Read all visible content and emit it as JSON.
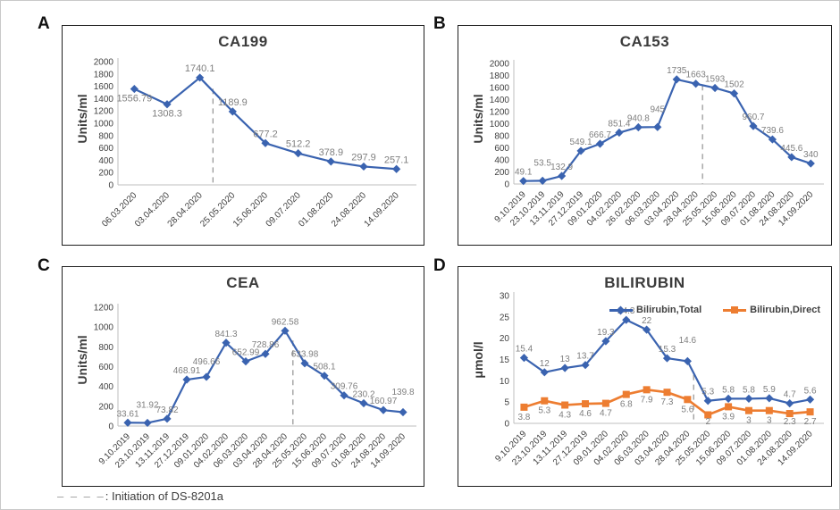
{
  "caption": {
    "key": "– – – –",
    "text": ": Initiation of DS-8201a"
  },
  "panels": [
    {
      "letter": "A"
    },
    {
      "letter": "B"
    },
    {
      "letter": "C"
    },
    {
      "letter": "D"
    }
  ],
  "colors": {
    "series_blue": "#3a63b0",
    "series_orange": "#ed7d31",
    "data_label": "#7f7f7f",
    "dashed_line": "#9a9a9a",
    "axis_line": "#bfbfbf",
    "tick_text": "#404040"
  },
  "chart_data": [
    {
      "type": "line",
      "title": "CA199",
      "ylabel": "Units/ml",
      "ylim": [
        0,
        2000
      ],
      "ytick_step": 200,
      "grid": false,
      "legend": false,
      "categories": [
        "06.03.2020",
        "03.04.2020",
        "28.04.2020",
        "25.05.2020",
        "15.06.2020",
        "09.07.2020",
        "01.08.2020",
        "24.08.2020",
        "14.09.2020"
      ],
      "series": [
        {
          "name": "CA199",
          "color": "#3a63b0",
          "marker": "diamond",
          "values": [
            1556.79,
            1308.3,
            1740.1,
            1189.9,
            677.2,
            512.2,
            378.9,
            297.9,
            257.1
          ],
          "below_indices": [
            0,
            1
          ]
        }
      ],
      "dashed_line": {
        "x": 2.4,
        "y_top_frac": 0.22,
        "meaning": "Initiation of DS-8201a"
      }
    },
    {
      "type": "line",
      "title": "CA153",
      "ylabel": "Units/ml",
      "ylim": [
        0,
        2000
      ],
      "ytick_step": 200,
      "grid": false,
      "legend": false,
      "categories": [
        "9.10.2019",
        "23.10.2019",
        "13.11.2019",
        "27.12.2019",
        "09.01.2020",
        "04.02.2020",
        "26.02.2020",
        "06.03.2020",
        "03.04.2020",
        "28.04.2020",
        "25.05.2020",
        "15.06.2020",
        "09.07.2020",
        "01.08.2020",
        "24.08.2020",
        "14.09.2020"
      ],
      "series": [
        {
          "name": "CA153",
          "color": "#3a63b0",
          "marker": "diamond",
          "values": [
            49.1,
            53.5,
            132.9,
            549.1,
            666.7,
            851.4,
            940.8,
            945,
            1735,
            1663,
            1593,
            1502,
            960.7,
            739.6,
            445.6,
            340
          ]
        }
      ],
      "dashed_line": {
        "x": 9.35,
        "y_top_frac": 0.18,
        "meaning": "Initiation of DS-8201a"
      }
    },
    {
      "type": "line",
      "title": "CEA",
      "ylabel": "Units/ml",
      "ylim": [
        0,
        1200
      ],
      "ytick_step": 200,
      "grid": false,
      "legend": false,
      "categories": [
        "9.10.2019",
        "23.10.2019",
        "13.11.2019",
        "27.12.2019",
        "09.01.2020",
        "04.02.2020",
        "06.03.2020",
        "03.04.2020",
        "28.04.2020",
        "25.05.2020",
        "15.06.2020",
        "09.07.2020",
        "01.08.2020",
        "24.08.2020",
        "14.09.2020"
      ],
      "series": [
        {
          "name": "CEA",
          "color": "#3a63b0",
          "marker": "diamond",
          "values": [
            33.61,
            31.92,
            73.82,
            468.91,
            496.66,
            841.3,
            652.99,
            728.86,
            962.58,
            633.98,
            508.1,
            309.76,
            230.2,
            160.97,
            139.8
          ]
        }
      ],
      "dashed_line": {
        "x": 8.4,
        "y_top_frac": 0.28,
        "meaning": "Initiation of DS-8201a"
      }
    },
    {
      "type": "line",
      "title": "BILIRUBIN",
      "ylabel": "μmol/l",
      "ylim": [
        0,
        30
      ],
      "ytick_step": 5,
      "grid": false,
      "legend": {
        "position": "top-right"
      },
      "categories": [
        "9.10.2019",
        "23.10.2019",
        "13.11.2019",
        "27.12.2019",
        "09.01.2020",
        "04.02.2020",
        "06.03.2020",
        "03.04.2020",
        "28.04.2020",
        "25.05.2020",
        "15.06.2020",
        "09.07.2020",
        "01.08.2020",
        "24.08.2020",
        "14.09.2020"
      ],
      "series": [
        {
          "name": "Bilirubin,Total",
          "color": "#3a63b0",
          "marker": "diamond",
          "values": [
            15.4,
            12,
            13,
            13.7,
            19.3,
            24.3,
            22,
            15.3,
            14.6,
            5.3,
            5.8,
            5.8,
            5.9,
            4.7,
            5.6
          ]
        },
        {
          "name": "Bilirubin,Direct",
          "color": "#ed7d31",
          "marker": "square",
          "label_position": "below",
          "values": [
            3.8,
            5.3,
            4.3,
            4.6,
            4.7,
            6.8,
            7.9,
            7.3,
            5.6,
            2,
            3.9,
            3,
            3,
            2.3,
            2.7
          ]
        }
      ],
      "dashed_line": {
        "x": 8.3,
        "y_top_frac": 0.62,
        "meaning": "Initiation of DS-8201a"
      }
    }
  ]
}
